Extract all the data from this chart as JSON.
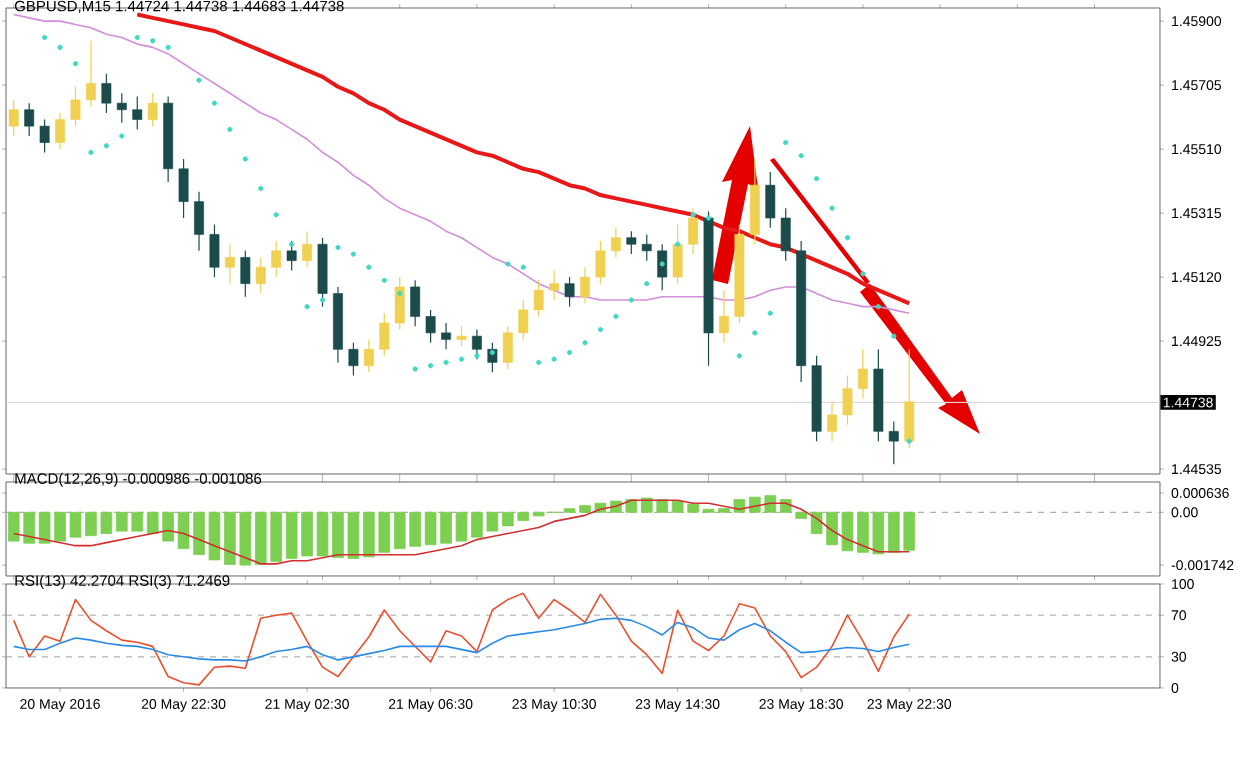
{
  "chart_data": [
    {
      "type": "candlestick",
      "title": "GBPUSD,M15 1.44724 1.44738 1.44683 1.44738",
      "categories": [
        null,
        null,
        null,
        null,
        null,
        null,
        null,
        null,
        null,
        null,
        null,
        null,
        null,
        null,
        null,
        null,
        null,
        null,
        null,
        null,
        null,
        null,
        null,
        null,
        null,
        null,
        null,
        null,
        null,
        null,
        null,
        null,
        null,
        null,
        null,
        null,
        null,
        null,
        null,
        null,
        null,
        null,
        null,
        null,
        null,
        null,
        null,
        null,
        null,
        null,
        null,
        null,
        null,
        null,
        null,
        null,
        null,
        null,
        null
      ],
      "ohlc": [
        [
          1.4558,
          1.4566,
          1.4555,
          1.4563
        ],
        [
          1.4563,
          1.4565,
          1.4555,
          1.4558
        ],
        [
          1.4558,
          1.456,
          1.455,
          1.4553
        ],
        [
          1.4553,
          1.4562,
          1.4551,
          1.456
        ],
        [
          1.456,
          1.457,
          1.4558,
          1.4566
        ],
        [
          1.4566,
          1.4584,
          1.4564,
          1.4571
        ],
        [
          1.4571,
          1.4574,
          1.4562,
          1.4565
        ],
        [
          1.4565,
          1.4568,
          1.4559,
          1.4563
        ],
        [
          1.4563,
          1.4567,
          1.4557,
          1.456
        ],
        [
          1.456,
          1.4568,
          1.4558,
          1.4565
        ],
        [
          1.4565,
          1.4567,
          1.4541,
          1.4545
        ],
        [
          1.4545,
          1.4548,
          1.453,
          1.4535
        ],
        [
          1.4535,
          1.4538,
          1.452,
          1.4525
        ],
        [
          1.4525,
          1.4528,
          1.4512,
          1.4515
        ],
        [
          1.4515,
          1.4522,
          1.451,
          1.4518
        ],
        [
          1.4518,
          1.452,
          1.4506,
          1.451
        ],
        [
          1.451,
          1.4518,
          1.4507,
          1.4515
        ],
        [
          1.4515,
          1.4523,
          1.4512,
          1.452
        ],
        [
          1.452,
          1.4523,
          1.4514,
          1.4517
        ],
        [
          1.4517,
          1.4526,
          1.4515,
          1.4522
        ],
        [
          1.4522,
          1.4524,
          1.4503,
          1.4507
        ],
        [
          1.4507,
          1.4509,
          1.4486,
          1.449
        ],
        [
          1.449,
          1.4492,
          1.4482,
          1.4485
        ],
        [
          1.4485,
          1.4493,
          1.4483,
          1.449
        ],
        [
          1.449,
          1.4501,
          1.4488,
          1.4498
        ],
        [
          1.4498,
          1.4512,
          1.4496,
          1.4509
        ],
        [
          1.4509,
          1.4511,
          1.4497,
          1.45
        ],
        [
          1.45,
          1.4502,
          1.4492,
          1.4495
        ],
        [
          1.4495,
          1.4498,
          1.449,
          1.4493
        ],
        [
          1.4493,
          1.4497,
          1.4491,
          1.4494
        ],
        [
          1.4494,
          1.4496,
          1.4487,
          1.449
        ],
        [
          1.449,
          1.4492,
          1.4483,
          1.4486
        ],
        [
          1.4486,
          1.4497,
          1.4484,
          1.4495
        ],
        [
          1.4495,
          1.4505,
          1.4493,
          1.4502
        ],
        [
          1.4502,
          1.4511,
          1.45,
          1.4508
        ],
        [
          1.4508,
          1.4514,
          1.4505,
          1.451
        ],
        [
          1.451,
          1.4512,
          1.4503,
          1.4506
        ],
        [
          1.4506,
          1.4515,
          1.4504,
          1.4512
        ],
        [
          1.4512,
          1.4523,
          1.451,
          1.452
        ],
        [
          1.452,
          1.4527,
          1.4518,
          1.4524
        ],
        [
          1.4524,
          1.4526,
          1.4519,
          1.4522
        ],
        [
          1.4522,
          1.4525,
          1.4517,
          1.452
        ],
        [
          1.452,
          1.4522,
          1.4508,
          1.4512
        ],
        [
          1.4512,
          1.4528,
          1.451,
          1.4522
        ],
        [
          1.4522,
          1.4533,
          1.4519,
          1.453
        ],
        [
          1.453,
          1.4532,
          1.4485,
          1.4495
        ],
        [
          1.4495,
          1.4508,
          1.4492,
          1.45
        ],
        [
          1.45,
          1.4528,
          1.4498,
          1.4525
        ],
        [
          1.4525,
          1.4548,
          1.4522,
          1.454
        ],
        [
          1.454,
          1.4544,
          1.4527,
          1.453
        ],
        [
          1.453,
          1.4533,
          1.4517,
          1.452
        ],
        [
          1.452,
          1.4523,
          1.448,
          1.4485
        ],
        [
          1.4485,
          1.4488,
          1.4462,
          1.4465
        ],
        [
          1.4465,
          1.4474,
          1.4462,
          1.447
        ],
        [
          1.447,
          1.4482,
          1.4467,
          1.4478
        ],
        [
          1.4478,
          1.449,
          1.4475,
          1.4484
        ],
        [
          1.4484,
          1.449,
          1.4462,
          1.4465
        ],
        [
          1.4465,
          1.4468,
          1.4455,
          1.4462
        ],
        [
          1.4462,
          1.449,
          1.446,
          1.4474
        ]
      ],
      "colors": [
        "#f0d050",
        "#1b4b4b",
        "#1b4b4b",
        "#f0d050",
        "#f0d050",
        "#f0d050",
        "#1b4b4b",
        "#1b4b4b",
        "#1b4b4b",
        "#f0d050",
        "#1b4b4b",
        "#1b4b4b",
        "#1b4b4b",
        "#1b4b4b",
        "#f0d050",
        "#1b4b4b",
        "#f0d050",
        "#f0d050",
        "#1b4b4b",
        "#f0d050",
        "#1b4b4b",
        "#1b4b4b",
        "#1b4b4b",
        "#f0d050",
        "#f0d050",
        "#f0d050",
        "#1b4b4b",
        "#1b4b4b",
        "#1b4b4b",
        "#f0d050",
        "#1b4b4b",
        "#1b4b4b",
        "#f0d050",
        "#f0d050",
        "#f0d050",
        "#f0d050",
        "#1b4b4b",
        "#f0d050",
        "#f0d050",
        "#f0d050",
        "#1b4b4b",
        "#1b4b4b",
        "#1b4b4b",
        "#f0d050",
        "#f0d050",
        "#1b4b4b",
        "#f0d050",
        "#f0d050",
        "#f0d050",
        "#1b4b4b",
        "#1b4b4b",
        "#1b4b4b",
        "#1b4b4b",
        "#f0d050",
        "#f0d050",
        "#f0d050",
        "#1b4b4b",
        "#1b4b4b",
        "#f0d050"
      ],
      "series": [
        {
          "type": "line",
          "color": "#e81818",
          "values": [
            null,
            null,
            null,
            null,
            null,
            null,
            null,
            null,
            1.4592,
            1.4591,
            1.459,
            1.4589,
            1.4588,
            1.4587,
            1.4585,
            1.4583,
            1.4581,
            1.4579,
            1.4577,
            1.4575,
            1.4573,
            1.457,
            1.4568,
            1.4565,
            1.4563,
            1.456,
            1.4558,
            1.4556,
            1.4554,
            1.4552,
            1.455,
            1.4549,
            1.4547,
            1.4545,
            1.4544,
            1.4542,
            1.454,
            1.4539,
            1.4537,
            1.4536,
            1.4535,
            1.4534,
            1.4533,
            1.4532,
            1.4531,
            1.4529,
            1.4527,
            1.4526,
            1.4524,
            1.4522,
            1.4521,
            1.4519,
            1.4517,
            1.4515,
            1.4513,
            1.451,
            1.4508,
            1.4506,
            1.4504
          ]
        },
        {
          "type": "line",
          "color": "#d28ed8",
          "values": [
            1.4592,
            1.4591,
            1.459,
            1.459,
            1.4589,
            1.4588,
            1.4586,
            1.4585,
            1.4583,
            1.4582,
            1.458,
            1.4577,
            1.4574,
            1.4571,
            1.4568,
            1.4565,
            1.4562,
            1.456,
            1.4557,
            1.4554,
            1.455,
            1.4547,
            1.4543,
            1.454,
            1.4536,
            1.4533,
            1.4531,
            1.4529,
            1.4526,
            1.4524,
            1.4521,
            1.4518,
            1.4516,
            1.4513,
            1.451,
            1.4508,
            1.4506,
            1.4506,
            1.4505,
            1.4505,
            1.4505,
            1.4505,
            1.4506,
            1.4506,
            1.4506,
            1.4506,
            1.4505,
            1.4505,
            1.4506,
            1.4508,
            1.4509,
            1.4509,
            1.4507,
            1.4505,
            1.4504,
            1.4503,
            1.4503,
            1.4502,
            1.4501
          ]
        },
        {
          "type": "scatter",
          "color": "#40d8c0",
          "marker": "circle",
          "values": [
            null,
            null,
            1.4585,
            1.4582,
            1.4577,
            1.455,
            1.4552,
            1.4555,
            1.4585,
            1.4584,
            1.4582,
            null,
            1.4572,
            1.4565,
            1.4557,
            1.4548,
            1.4539,
            1.4531,
            1.4522,
            1.4503,
            1.4505,
            1.4521,
            1.4519,
            1.4515,
            1.4511,
            1.4507,
            1.4484,
            1.4485,
            1.4486,
            1.4487,
            1.4488,
            1.4489,
            1.4516,
            1.4515,
            1.4486,
            1.4487,
            1.4489,
            1.4492,
            1.4496,
            1.45,
            1.4505,
            1.451,
            1.4516,
            1.4522,
            1.4531,
            1.453,
            null,
            1.4488,
            1.4495,
            1.4501,
            1.4553,
            1.4549,
            1.4542,
            1.4533,
            1.4524,
            1.4513,
            1.4503,
            1.4494,
            1.4462
          ]
        }
      ],
      "ref_lines": [
        {
          "axis": "y",
          "value": 1.44738,
          "label": "1.44738",
          "color": "#d8d8d8",
          "line_style": "solid"
        }
      ],
      "ylim": [
        1.4452,
        1.4594
      ],
      "yticks": [
        {
          "value": 1.459,
          "label": "1.45900"
        },
        1.45705,
        {
          "value": 1.4551,
          "label": "1.45510"
        },
        1.45315,
        {
          "value": 1.4512,
          "label": "1.45120"
        },
        1.44925,
        1.44535
      ],
      "tick_labels": "y"
    },
    {
      "type": "bar",
      "title": "MACD(12,26,9) -0.000986 -0.001086",
      "categories": [
        null,
        null,
        null,
        null,
        null,
        null,
        null,
        null,
        null,
        null,
        null,
        null,
        null,
        null,
        null,
        null,
        null,
        null,
        null,
        null,
        null,
        null,
        null,
        null,
        null,
        null,
        null,
        null,
        null,
        null,
        null,
        null,
        null,
        null,
        null,
        null,
        null,
        null,
        null,
        null,
        null,
        null,
        null,
        null,
        null,
        null,
        null,
        null,
        null,
        null,
        null,
        null,
        null,
        null,
        null,
        null,
        null,
        null,
        null
      ],
      "series": [
        {
          "type": "bar",
          "color": "#7ccf50",
          "values": [
            -0.00095,
            -0.00102,
            -0.00102,
            -0.00095,
            -0.00082,
            -0.00077,
            -0.0007,
            -0.00062,
            -0.00062,
            -0.0007,
            -0.00095,
            -0.0012,
            -0.00139,
            -0.00157,
            -0.00172,
            -0.00174,
            -0.00172,
            -0.00162,
            -0.00152,
            -0.00144,
            -0.00144,
            -0.00149,
            -0.00152,
            -0.00147,
            -0.00132,
            -0.0012,
            -0.00112,
            -0.00107,
            -0.00102,
            -0.00095,
            -0.00082,
            -0.00062,
            -0.00045,
            -0.00027,
            -0.00012,
            0,
            0.00012,
            0.00022,
            0.0003,
            0.00037,
            0.00042,
            0.00047,
            0.00042,
            0.00037,
            0.00027,
            0.0001,
            0.00012,
            0.00042,
            0.0005,
            0.00055,
            0.00042,
            -0.0002,
            -0.0007,
            -0.00107,
            -0.00127,
            -0.00132,
            -0.00137,
            -0.00132,
            -0.00125
          ]
        },
        {
          "type": "line",
          "color": "#d03030",
          "values": [
            -0.0007,
            -0.0008,
            -0.0009,
            -0.001,
            -0.0011,
            -0.0011,
            -0.001,
            -0.0009,
            -0.0008,
            -0.0007,
            -0.0006,
            -0.0007,
            -0.0009,
            -0.0011,
            -0.0013,
            -0.0015,
            -0.0017,
            -0.0017,
            -0.0016,
            -0.0016,
            -0.0015,
            -0.0014,
            -0.0014,
            -0.0014,
            -0.0014,
            -0.0014,
            -0.0014,
            -0.0013,
            -0.0012,
            -0.0011,
            -0.0009,
            -0.0008,
            -0.0007,
            -0.0006,
            -0.0005,
            -0.0003,
            -0.0002,
            -0.0001,
            0.0001,
            0.0002,
            0.0004,
            0.0004,
            0.0004,
            0.0004,
            0.0003,
            0.0003,
            0.0002,
            0.0001,
            0.0002,
            0.0003,
            0.0003,
            0.0001,
            -0.0002,
            -0.0006,
            -0.0009,
            -0.0011,
            -0.0013,
            -0.0013,
            -0.0013
          ]
        }
      ],
      "ref_lines": [
        {
          "axis": "y",
          "value": 0,
          "color": "#b0b0b0",
          "line_style": "dashed"
        }
      ],
      "ylim": [
        -0.0021,
        0.001
      ],
      "yticks": [
        0.000636,
        {
          "value": 0,
          "label": "0.00"
        },
        -0.001742
      ],
      "tick_labels": "y"
    },
    {
      "type": "line",
      "title": "RSI(13) 42.2704 RSI(3) 71.2469",
      "categories": [
        null,
        null,
        null,
        "20 May 2016",
        null,
        null,
        null,
        null,
        null,
        null,
        null,
        "20 May 22:30",
        null,
        null,
        null,
        null,
        null,
        null,
        null,
        "21 May 02:30",
        null,
        null,
        null,
        null,
        null,
        null,
        null,
        "21 May 06:30",
        null,
        null,
        null,
        null,
        null,
        null,
        null,
        "23 May 10:30",
        null,
        null,
        null,
        null,
        null,
        null,
        null,
        "23 May 14:30",
        null,
        null,
        null,
        null,
        null,
        null,
        null,
        "23 May 18:30",
        null,
        null,
        null,
        null,
        null,
        null,
        "23 May 22:30"
      ],
      "series": [
        {
          "type": "line",
          "color": "#e85030",
          "values": [
            65,
            30,
            50,
            45,
            85,
            65,
            55,
            46,
            44,
            40,
            11,
            5,
            3,
            20,
            21,
            19,
            67,
            70,
            72,
            45,
            20,
            11,
            30,
            49,
            75,
            55,
            40,
            25,
            55,
            50,
            35,
            75,
            85,
            91,
            67,
            85,
            75,
            63,
            90,
            70,
            45,
            32,
            14,
            75,
            45,
            36,
            50,
            81,
            77,
            50,
            35,
            10,
            20,
            40,
            70,
            45,
            16,
            49,
            71
          ]
        },
        {
          "type": "line",
          "color": "#2a8ae8",
          "values": [
            40,
            37,
            37,
            43,
            48,
            46,
            43,
            41,
            40,
            37,
            32,
            30,
            28,
            27,
            27,
            26,
            30,
            35,
            37,
            40,
            32,
            27,
            30,
            33,
            36,
            40,
            40,
            40,
            40,
            37,
            34,
            43,
            50,
            52,
            54,
            56,
            59,
            62,
            66,
            67,
            65,
            59,
            51,
            63,
            58,
            48,
            46,
            56,
            62,
            55,
            44,
            34,
            35,
            37,
            39,
            38,
            35,
            39,
            42
          ]
        }
      ],
      "ref_lines": [
        {
          "axis": "y",
          "value": 30,
          "color": "#b0b0b0",
          "line_style": "dashed"
        },
        {
          "axis": "y",
          "value": 70,
          "color": "#b0b0b0",
          "line_style": "dashed"
        }
      ],
      "ylim": [
        0,
        100
      ],
      "yticks": [
        0,
        30,
        70,
        100
      ]
    }
  ]
}
